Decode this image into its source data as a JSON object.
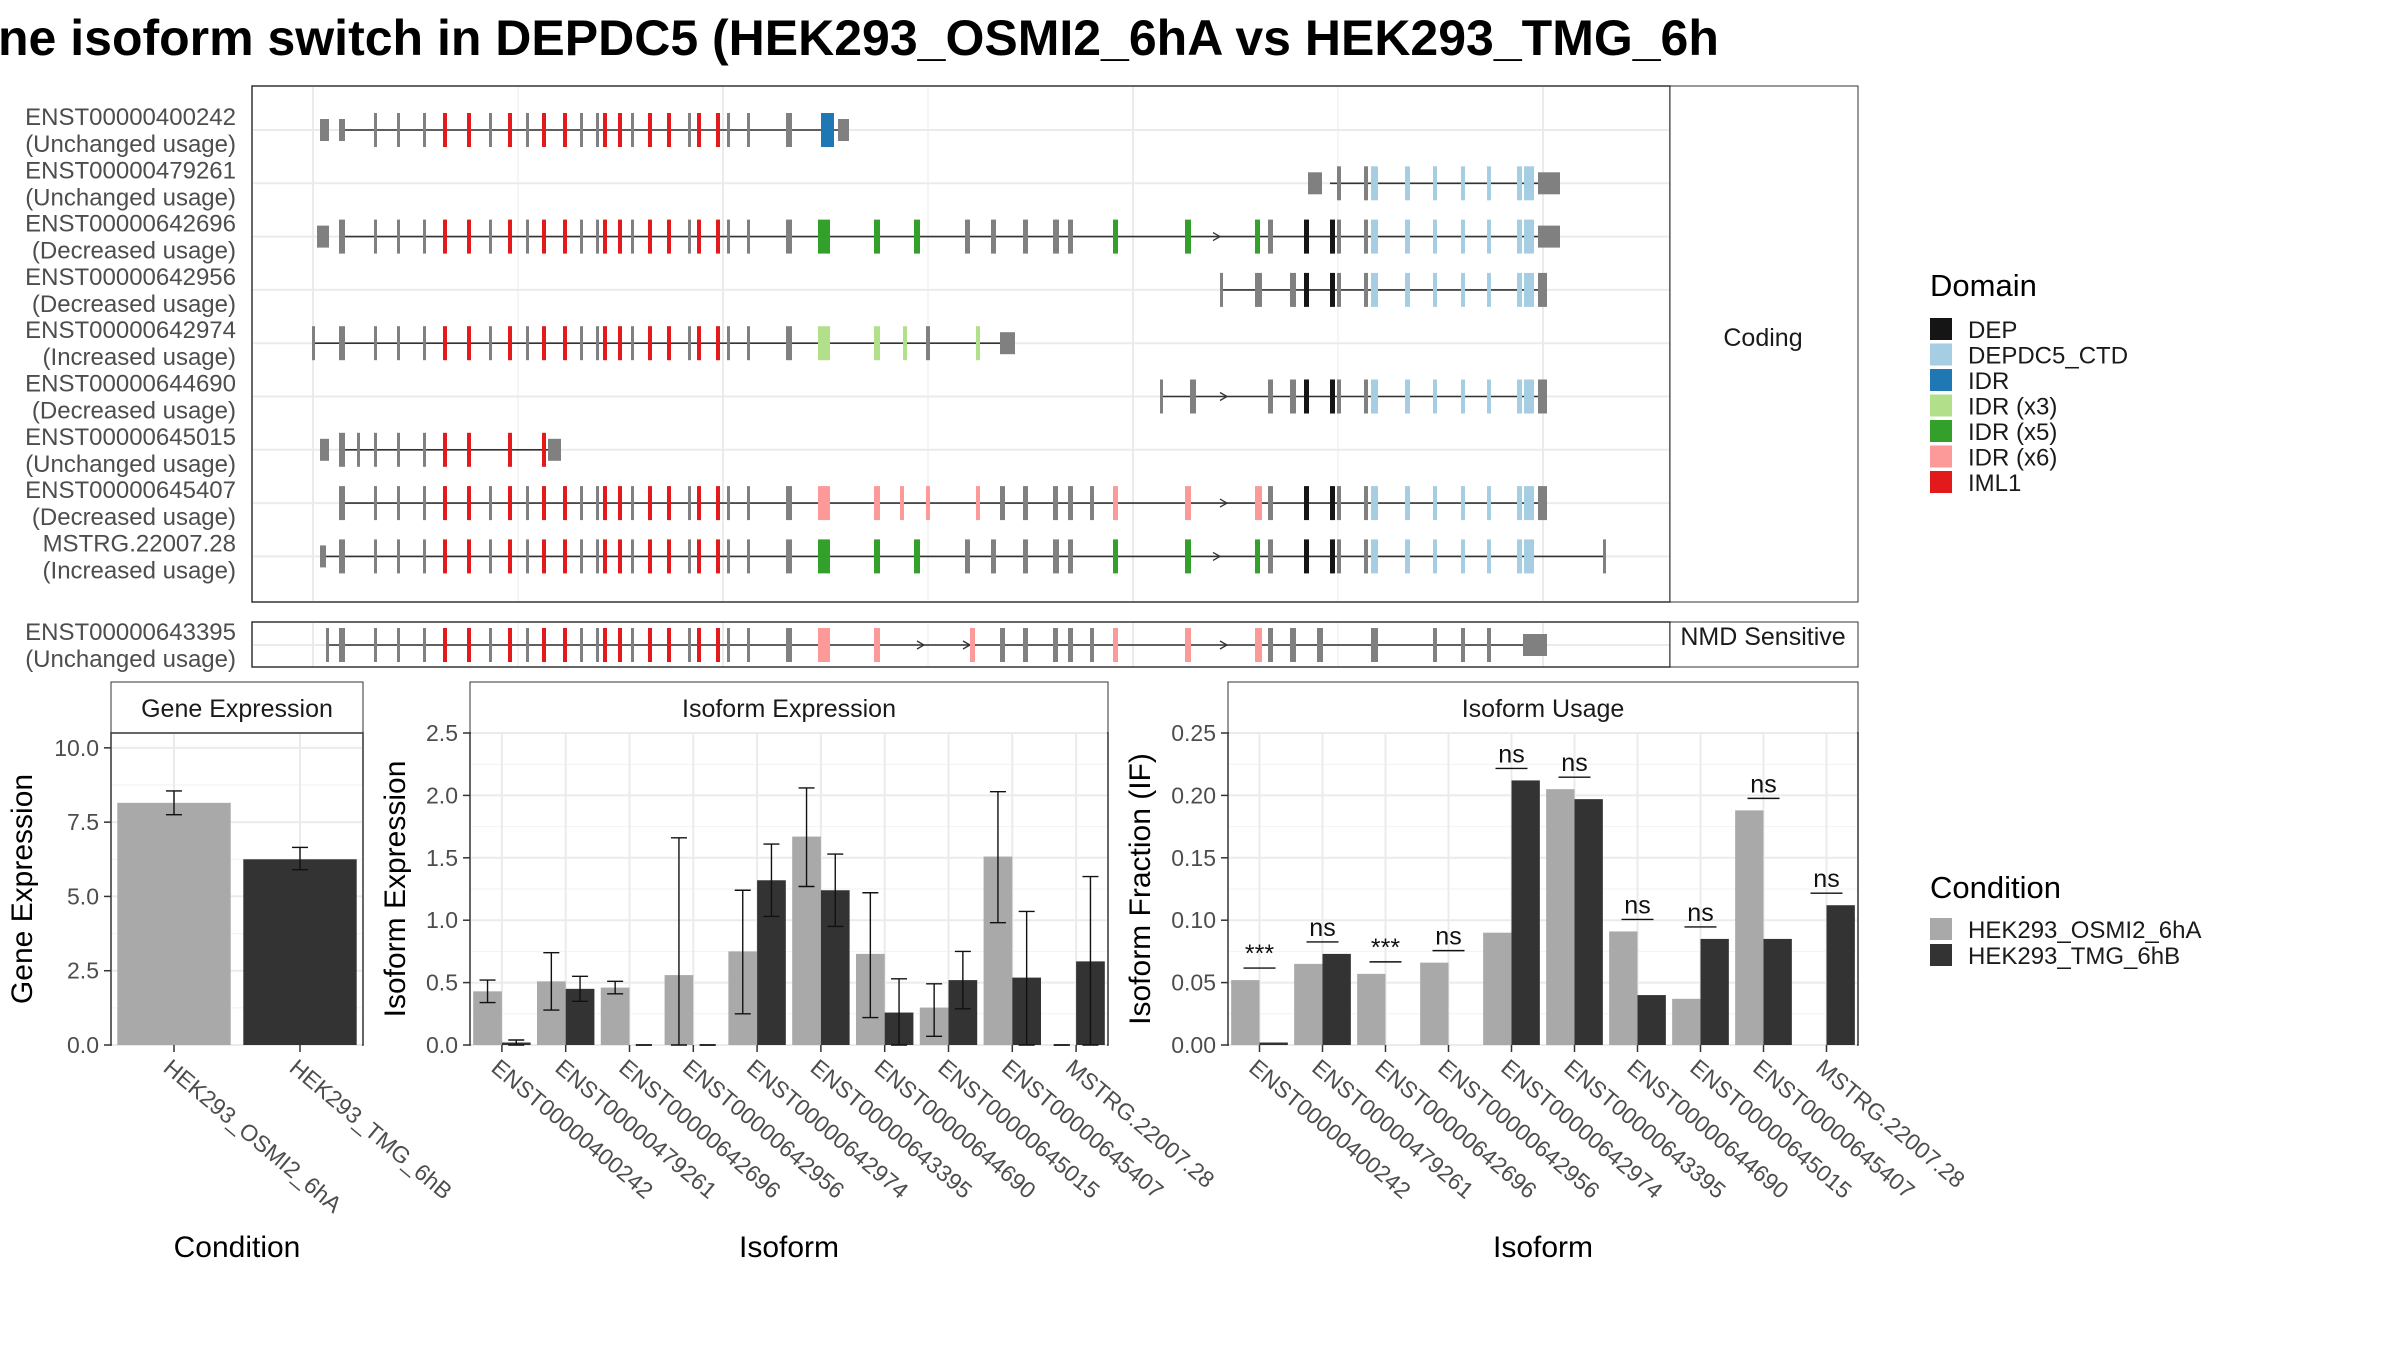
{
  "title": "ne isoform switch in DEPDC5 (HEK293_OSMI2_6hA vs HEK293_TMG_6h",
  "colors": {
    "DEP": "#151515",
    "DEPDC5_CTD": "#a6cee3",
    "IDR": "#1f78b4",
    "IDR (x3)": "#b2df8a",
    "IDR (x5)": "#33a02c",
    "IDR (x6)": "#fb9a99",
    "IML1": "#e31a1c",
    "none": "#808080",
    "cond1": "#a9a9a9",
    "cond2": "#333333"
  },
  "structure": {
    "coding_strip": "Coding",
    "nmd_strip": "NMD Sensitive",
    "domain_legend_title": "Domain",
    "domains": [
      "DEP",
      "DEPDC5_CTD",
      "IDR",
      "IDR (x3)",
      "IDR (x5)",
      "IDR (x6)",
      "IML1"
    ],
    "coding_isoforms": [
      {
        "id": "ENST00000400242",
        "usage": "(Unchanged usage)"
      },
      {
        "id": "ENST00000479261",
        "usage": "(Unchanged usage)"
      },
      {
        "id": "ENST00000642696",
        "usage": "(Decreased usage)"
      },
      {
        "id": "ENST00000642956",
        "usage": "(Decreased usage)"
      },
      {
        "id": "ENST00000642974",
        "usage": "(Increased usage)"
      },
      {
        "id": "ENST00000644690",
        "usage": "(Decreased usage)"
      },
      {
        "id": "ENST00000645015",
        "usage": "(Unchanged usage)"
      },
      {
        "id": "ENST00000645407",
        "usage": "(Decreased usage)"
      },
      {
        "id": "MSTRG.22007.28",
        "usage": "(Increased usage)"
      }
    ],
    "nmd_isoforms": [
      {
        "id": "ENST00000643395",
        "usage": "(Unchanged usage)"
      }
    ]
  },
  "chart_data": [
    {
      "type": "bar",
      "title": "Gene Expression",
      "xlabel": "Condition",
      "ylabel": "Gene Expression",
      "ylim": [
        0,
        10.5
      ],
      "yticks": [
        "0.0",
        "2.5",
        "5.0",
        "7.5",
        "10.0"
      ],
      "categories": [
        "HEK293_OSMI2_6hA",
        "HEK293_TMG_6hB"
      ],
      "values": [
        8.15,
        6.25
      ],
      "err_low": [
        7.75,
        5.9
      ],
      "err_high": [
        8.55,
        6.65
      ]
    },
    {
      "type": "bar",
      "title": "Isoform Expression",
      "xlabel": "Isoform",
      "ylabel": "Isoform Expression",
      "ylim": [
        0,
        2.5
      ],
      "yticks": [
        "0.0",
        "0.5",
        "1.0",
        "1.5",
        "2.0",
        "2.5"
      ],
      "categories": [
        "ENST00000400242",
        "ENST00000479261",
        "ENST00000642696",
        "ENST00000642956",
        "ENST00000642974",
        "ENST00000643395",
        "ENST00000644690",
        "ENST00000645015",
        "ENST00000645407",
        "MSTRG.22007.28"
      ],
      "series": [
        {
          "name": "HEK293_OSMI2_6hA",
          "values": [
            0.43,
            0.51,
            0.46,
            0.56,
            0.75,
            1.67,
            0.73,
            0.3,
            1.51,
            0.0
          ],
          "err_low": [
            0.34,
            0.28,
            0.41,
            0.0,
            0.25,
            1.27,
            0.22,
            0.07,
            0.98,
            0.0
          ],
          "err_high": [
            0.52,
            0.74,
            0.51,
            1.66,
            1.24,
            2.06,
            1.22,
            0.49,
            2.03,
            0.0
          ]
        },
        {
          "name": "HEK293_TMG_6hB",
          "values": [
            0.02,
            0.45,
            0.0,
            0.0,
            1.32,
            1.24,
            0.26,
            0.52,
            0.54,
            0.67
          ],
          "err_low": [
            0.0,
            0.35,
            0.0,
            0.0,
            1.03,
            0.95,
            0.0,
            0.29,
            0.0,
            0.0
          ],
          "err_high": [
            0.04,
            0.55,
            0.0,
            0.0,
            1.61,
            1.53,
            0.53,
            0.75,
            1.07,
            1.35
          ]
        }
      ]
    },
    {
      "type": "bar",
      "title": "Isoform Usage",
      "xlabel": "Isoform",
      "ylabel": "Isoform Fraction (IF)",
      "ylim": [
        0,
        0.25
      ],
      "yticks": [
        "0.00",
        "0.05",
        "0.10",
        "0.15",
        "0.20",
        "0.25"
      ],
      "categories": [
        "ENST00000400242",
        "ENST00000479261",
        "ENST00000642696",
        "ENST00000642956",
        "ENST00000642974",
        "ENST00000643395",
        "ENST00000644690",
        "ENST00000645015",
        "ENST00000645407",
        "MSTRG.22007.28"
      ],
      "series": [
        {
          "name": "HEK293_OSMI2_6hA",
          "values": [
            0.052,
            0.065,
            0.057,
            0.066,
            0.09,
            0.205,
            0.091,
            0.037,
            0.188,
            0.0
          ]
        },
        {
          "name": "HEK293_TMG_6hB",
          "values": [
            0.002,
            0.073,
            0.0,
            0.0,
            0.212,
            0.197,
            0.04,
            0.085,
            0.085,
            0.112
          ]
        }
      ],
      "significance": [
        "***",
        "ns",
        "***",
        "ns",
        "ns",
        "ns",
        "ns",
        "ns",
        "ns",
        "ns"
      ],
      "legend_title": "Condition",
      "legend_entries": [
        "HEK293_OSMI2_6hA",
        "HEK293_TMG_6hB"
      ]
    }
  ]
}
